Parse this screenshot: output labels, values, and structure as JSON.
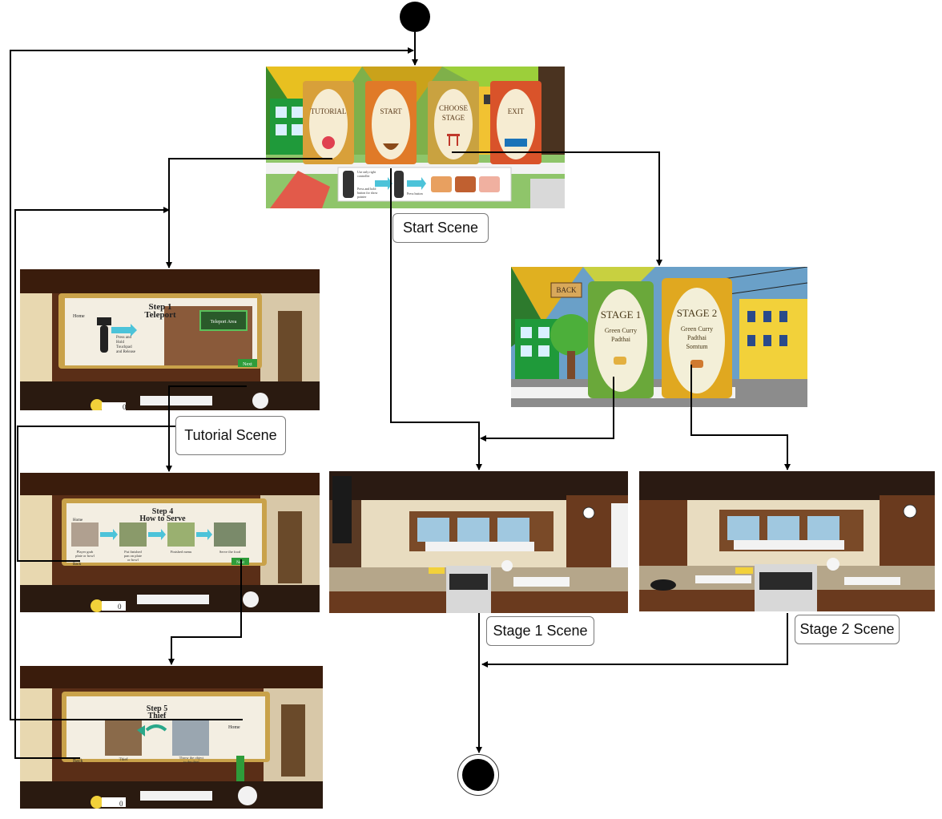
{
  "captions": {
    "start_scene": "Start Scene",
    "tutorial_scene": "Tutorial Scene",
    "stage1_scene": "Stage 1 Scene",
    "stage2_scene": "Stage 2 Scene"
  },
  "start_menu": {
    "tutorial": "TUTORIAL",
    "start": "START",
    "choose_line1": "CHOOSE",
    "choose_line2": "STAGE",
    "exit": "EXIT",
    "instr_a1": "Use only right",
    "instr_a2": "controller",
    "instr_b1": "Press and hold",
    "instr_b2": "button for show",
    "instr_b3": "pointer",
    "instr_c": "Press button"
  },
  "stage_select": {
    "back": "BACK",
    "stage1_title": "STAGE 1",
    "stage1_line1": "Green Curry",
    "stage1_line2": "Padthai",
    "stage2_title": "STAGE 2",
    "stage2_line1": "Green Curry",
    "stage2_line2": "Padthai",
    "stage2_line3": "Somtum"
  },
  "tutorial_1": {
    "step": "Step 1",
    "name": "Teleport",
    "home": "Home",
    "area": "Teleport Area",
    "inst1": "Press and",
    "inst2": "Hold",
    "inst3": "Touchpad",
    "inst4": "and Release",
    "next": "Next",
    "coins": "0"
  },
  "tutorial_4": {
    "step": "Step 4",
    "name": "How to Serve",
    "home": "Home",
    "c1a": "Player grab",
    "c1b": "plate or bowl",
    "c2a": "Put finished",
    "c2b": "pan on plate",
    "c2c": "or bowl",
    "c3": "Finished menu",
    "c4": "Serve the food",
    "back": "Back",
    "next": "Next",
    "coins": "0"
  },
  "tutorial_5": {
    "step": "Step 5",
    "name": "Thief",
    "home": "Home",
    "c1": "Thief",
    "c2a": "Throw the object",
    "c2b": "to the thief",
    "back": "Back",
    "coins": "0"
  },
  "colors": {
    "edge": "#000000",
    "wood": "#5a2e17",
    "cream": "#f3eee2",
    "green_house": "#2e9c3a",
    "yellow": "#f0c419"
  }
}
